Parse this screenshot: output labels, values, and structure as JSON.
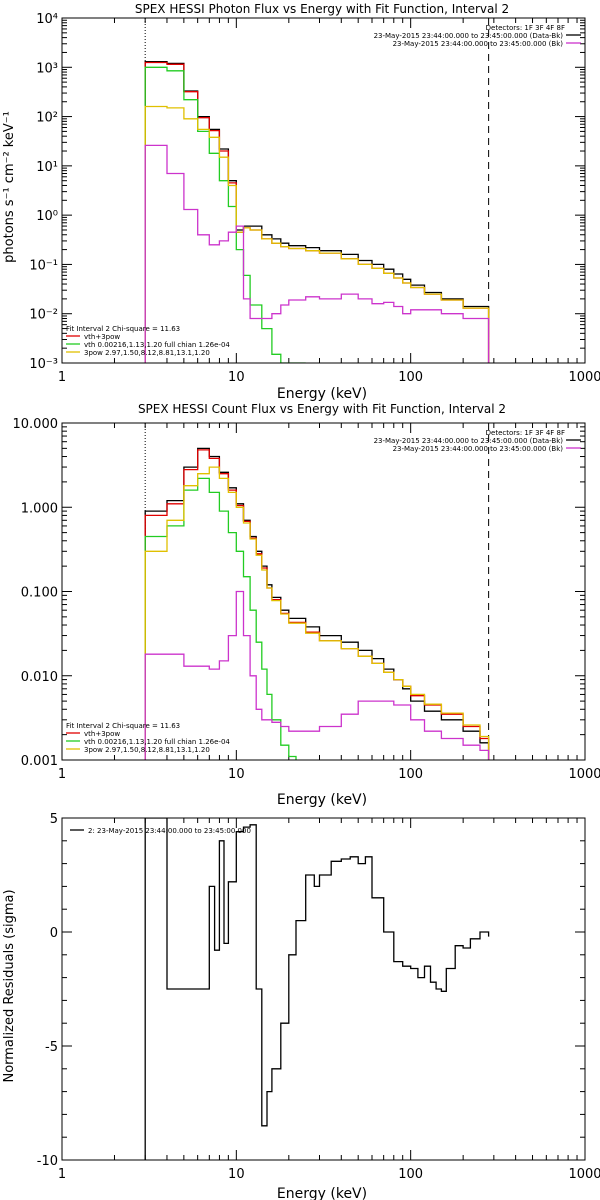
{
  "chart_data": [
    {
      "type": "line",
      "title": "SPEX HESSI Photon Flux vs Energy with Fit Function, Interval 2",
      "xlabel": "Energy (keV)",
      "ylabel": "photons s⁻¹ cm⁻² keV⁻¹",
      "xscale": "log",
      "yscale": "log",
      "xlim": [
        1,
        1000
      ],
      "ylim": [
        0.001,
        10000
      ],
      "x_tick_labels": [
        "1",
        "10",
        "100",
        "1000"
      ],
      "y_tick_labels": [
        "10⁻³",
        "10⁻²",
        "10⁻¹",
        "10⁰",
        "10¹",
        "10²",
        "10³",
        "10⁴"
      ],
      "vlines": [
        {
          "x": 3,
          "style": "dotted"
        },
        {
          "x": 280,
          "style": "dashed"
        }
      ],
      "header_lines": [
        {
          "text": "Detectors: 1F 3F 4F 8F",
          "line_color": ""
        },
        {
          "text": "23-May-2015 23:44:00.000 to 23:45:00.000 (Data-Bk)",
          "line_color": "#000000"
        },
        {
          "text": "23-May-2015 23:44:00.000 to 23:45:00.000 (Bk)",
          "line_color": "#cc33cc"
        }
      ],
      "legend_lines": [
        {
          "text": "Fit Interval 2   Chi-square = 11.63",
          "line_color": ""
        },
        {
          "text": "vth+3pow",
          "line_color": "#e00000"
        },
        {
          "text": "vth 0.00216,1.13,1.20   full chian 1.26e-04",
          "line_color": "#22cc22"
        },
        {
          "text": "3pow 2.97,1.50,8.12,8.81,13.1,1.20",
          "line_color": "#e0c000"
        }
      ],
      "series": [
        {
          "color": "#000000",
          "edges": [
            3,
            4,
            5,
            6,
            7,
            8,
            9,
            10,
            11,
            12,
            14,
            16,
            18,
            20,
            25,
            30,
            40,
            50,
            60,
            70,
            80,
            90,
            100,
            120,
            150,
            200,
            280
          ],
          "values": [
            1300,
            1200,
            330,
            100,
            55,
            22,
            5,
            0.5,
            0.6,
            0.6,
            0.4,
            0.33,
            0.27,
            0.24,
            0.22,
            0.19,
            0.16,
            0.12,
            0.1,
            0.08,
            0.064,
            0.05,
            0.038,
            0.027,
            0.02,
            0.014
          ]
        },
        {
          "color": "#e00000",
          "edges": [
            3,
            4,
            5,
            6,
            7,
            8,
            9,
            10,
            11,
            12,
            14,
            16,
            18,
            20,
            25,
            30,
            40,
            50,
            60,
            70,
            80,
            90,
            100,
            120,
            150,
            200,
            280
          ],
          "values": [
            1250,
            1150,
            320,
            95,
            52,
            20,
            4.5,
            0.45,
            0.55,
            0.5,
            0.33,
            0.27,
            0.23,
            0.21,
            0.19,
            0.17,
            0.13,
            0.1,
            0.083,
            0.066,
            0.053,
            0.042,
            0.034,
            0.025,
            0.019,
            0.013
          ]
        },
        {
          "color": "#22cc22",
          "edges": [
            3,
            4,
            5,
            6,
            7,
            8,
            9,
            10,
            11,
            12,
            14,
            16,
            18,
            20,
            25
          ],
          "values": [
            1000,
            850,
            220,
            50,
            18,
            5,
            1.5,
            0.2,
            0.06,
            0.015,
            0.005,
            0.0015,
            0.001,
            0.001
          ]
        },
        {
          "color": "#e0c000",
          "edges": [
            3,
            4,
            5,
            6,
            7,
            8,
            9,
            10,
            11,
            12,
            14,
            16,
            18,
            20,
            25,
            30,
            40,
            50,
            60,
            70,
            80,
            90,
            100,
            120,
            150,
            200,
            280
          ],
          "values": [
            160,
            150,
            90,
            55,
            38,
            15,
            4,
            0.45,
            0.55,
            0.5,
            0.33,
            0.27,
            0.23,
            0.21,
            0.19,
            0.17,
            0.13,
            0.1,
            0.083,
            0.066,
            0.053,
            0.042,
            0.034,
            0.025,
            0.019,
            0.013
          ]
        },
        {
          "color": "#cc33cc",
          "edges": [
            3,
            4,
            5,
            6,
            7,
            8,
            9,
            10,
            11,
            12,
            14,
            16,
            18,
            20,
            25,
            30,
            40,
            50,
            60,
            70,
            80,
            90,
            100,
            120,
            150,
            200,
            280
          ],
          "values": [
            26,
            7,
            1.3,
            0.4,
            0.25,
            0.3,
            0.45,
            0.6,
            0.02,
            0.008,
            0.008,
            0.01,
            0.015,
            0.019,
            0.022,
            0.02,
            0.025,
            0.02,
            0.016,
            0.017,
            0.014,
            0.01,
            0.012,
            0.012,
            0.01,
            0.008
          ]
        }
      ]
    },
    {
      "type": "line",
      "title": "SPEX HESSI Count Flux vs Energy with Fit Function, Interval 2",
      "xlabel": "Energy (keV)",
      "ylabel": "",
      "xscale": "log",
      "yscale": "log",
      "xlim": [
        1,
        1000
      ],
      "ylim": [
        0.001,
        10
      ],
      "x_tick_labels": [
        "1",
        "10",
        "100",
        "1000"
      ],
      "y_tick_labels": [
        "0.001",
        "0.010",
        "0.100",
        "1.000",
        "10.000"
      ],
      "vlines": [
        {
          "x": 3,
          "style": "dotted"
        },
        {
          "x": 280,
          "style": "dashed"
        }
      ],
      "header_lines": [
        {
          "text": "Detectors: 1F 3F 4F 8F",
          "line_color": ""
        },
        {
          "text": "23-May-2015 23:44:00.000 to 23:45:00.000 (Data-Bk)",
          "line_color": "#000000"
        },
        {
          "text": "23-May-2015 23:44:00.000 to 23:45:00.000 (Bk)",
          "line_color": "#cc33cc"
        }
      ],
      "legend_lines": [
        {
          "text": "Fit Interval 2   Chi-square = 11.63",
          "line_color": ""
        },
        {
          "text": "vth+3pow",
          "line_color": "#e00000"
        },
        {
          "text": "vth 0.00216,1.13,1.20   full chian 1.26e-04",
          "line_color": "#22cc22"
        },
        {
          "text": "3pow 2.97,1.50,8.12,8.81,13.1,1.20",
          "line_color": "#e0c000"
        }
      ],
      "series": [
        {
          "color": "#000000",
          "edges": [
            3,
            4,
            5,
            6,
            7,
            8,
            9,
            10,
            11,
            12,
            13,
            14,
            15,
            16,
            18,
            20,
            25,
            30,
            40,
            50,
            60,
            70,
            80,
            90,
            100,
            120,
            150,
            200,
            250,
            280
          ],
          "values": [
            0.9,
            1.2,
            3.0,
            5.0,
            4.0,
            2.6,
            1.7,
            1.1,
            0.7,
            0.45,
            0.3,
            0.2,
            0.12,
            0.085,
            0.06,
            0.048,
            0.038,
            0.03,
            0.025,
            0.02,
            0.016,
            0.012,
            0.009,
            0.007,
            0.005,
            0.0038,
            0.003,
            0.0022,
            0.0016
          ]
        },
        {
          "color": "#e00000",
          "edges": [
            3,
            4,
            5,
            6,
            7,
            8,
            9,
            10,
            11,
            12,
            13,
            14,
            15,
            16,
            18,
            20,
            25,
            30,
            40,
            50,
            60,
            70,
            80,
            90,
            100,
            120,
            150,
            200,
            250,
            280
          ],
          "values": [
            0.8,
            1.1,
            2.8,
            4.8,
            3.8,
            2.5,
            1.6,
            1.05,
            0.68,
            0.43,
            0.28,
            0.19,
            0.11,
            0.08,
            0.055,
            0.043,
            0.033,
            0.026,
            0.021,
            0.017,
            0.014,
            0.011,
            0.009,
            0.0075,
            0.0058,
            0.0045,
            0.0035,
            0.0025,
            0.0018
          ]
        },
        {
          "color": "#22cc22",
          "edges": [
            3,
            4,
            5,
            6,
            7,
            8,
            9,
            10,
            11,
            12,
            13,
            14,
            15,
            16,
            18,
            20,
            22
          ],
          "values": [
            0.45,
            0.6,
            1.6,
            2.2,
            1.5,
            0.9,
            0.5,
            0.3,
            0.15,
            0.06,
            0.025,
            0.012,
            0.006,
            0.003,
            0.0015,
            0.0011
          ]
        },
        {
          "color": "#e0c000",
          "edges": [
            3,
            4,
            5,
            6,
            7,
            8,
            9,
            10,
            11,
            12,
            13,
            14,
            15,
            16,
            18,
            20,
            25,
            30,
            40,
            50,
            60,
            70,
            80,
            90,
            100,
            120,
            150,
            200,
            250,
            280
          ],
          "values": [
            0.3,
            0.7,
            1.8,
            2.5,
            3.0,
            2.2,
            1.5,
            1.0,
            0.65,
            0.42,
            0.27,
            0.18,
            0.11,
            0.078,
            0.054,
            0.042,
            0.032,
            0.026,
            0.021,
            0.017,
            0.014,
            0.011,
            0.009,
            0.0075,
            0.006,
            0.0046,
            0.0036,
            0.0026,
            0.0019
          ]
        },
        {
          "color": "#cc33cc",
          "edges": [
            3,
            5,
            7,
            8,
            9,
            10,
            11,
            12,
            13,
            14,
            16,
            18,
            20,
            25,
            30,
            40,
            50,
            60,
            80,
            100,
            120,
            150,
            200,
            250,
            280
          ],
          "values": [
            0.018,
            0.013,
            0.012,
            0.015,
            0.03,
            0.1,
            0.03,
            0.01,
            0.004,
            0.003,
            0.0028,
            0.0025,
            0.0022,
            0.0022,
            0.0025,
            0.0035,
            0.005,
            0.005,
            0.0045,
            0.003,
            0.0022,
            0.0018,
            0.0015,
            0.0013
          ]
        }
      ]
    },
    {
      "type": "line",
      "title": "",
      "xlabel": "Energy (keV)",
      "ylabel": "Normalized Residuals (sigma)",
      "xscale": "log",
      "yscale": "linear",
      "xlim": [
        1,
        1000
      ],
      "ylim": [
        -10,
        5
      ],
      "x_tick_labels": [
        "1",
        "10",
        "100",
        "1000"
      ],
      "y_tick_labels": [
        "-10",
        "-5",
        "0",
        "5"
      ],
      "y_ticks": [
        -10,
        -5,
        0,
        5
      ],
      "legend_lines": [
        {
          "text": "2: 23-May-2015 23:44:00.000 to 23:45:00.000",
          "line_color": "#000000"
        }
      ],
      "series": [
        {
          "color": "#000000",
          "edges": [
            3,
            4,
            5,
            6,
            7,
            7.5,
            8,
            8.5,
            9,
            10,
            11,
            12,
            13,
            14,
            15,
            16,
            18,
            20,
            22,
            25,
            28,
            30,
            35,
            40,
            45,
            50,
            55,
            60,
            70,
            80,
            90,
            100,
            110,
            120,
            130,
            140,
            150,
            160,
            180,
            200,
            220,
            250,
            280
          ],
          "values": [
            5.0,
            -2.5,
            -2.5,
            -2.5,
            2.0,
            -0.8,
            4.0,
            -0.5,
            2.2,
            4.4,
            4.6,
            4.7,
            -2.5,
            -8.5,
            -7.0,
            -6.0,
            -4.0,
            -1.0,
            0.5,
            2.5,
            2.0,
            2.5,
            3.1,
            3.2,
            3.3,
            3.0,
            3.3,
            1.5,
            0.0,
            -1.3,
            -1.5,
            -1.6,
            -2.0,
            -1.5,
            -2.2,
            -2.5,
            -2.6,
            -1.6,
            -0.6,
            -0.7,
            -0.3,
            0.0,
            -0.2
          ]
        }
      ]
    }
  ]
}
